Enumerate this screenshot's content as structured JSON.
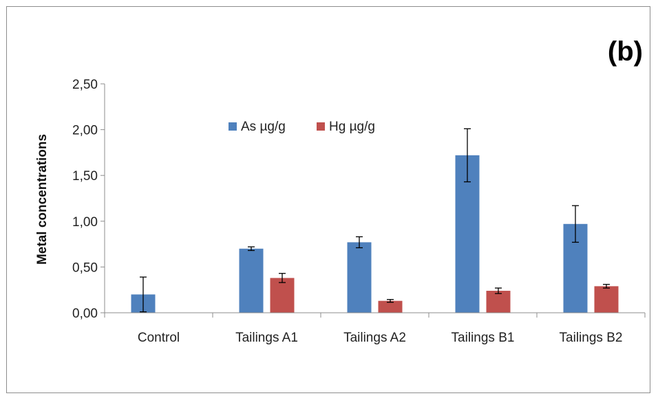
{
  "chart_data": {
    "type": "bar",
    "panel_label": "(b)",
    "ylabel": "Metal concentrations",
    "xlabel": "",
    "ylim": [
      0,
      2.5
    ],
    "yticks": [
      0,
      0.5,
      1.0,
      1.5,
      2.0,
      2.5
    ],
    "ytick_labels": [
      "0,00",
      "0,50",
      "1,00",
      "1,50",
      "2,00",
      "2,50"
    ],
    "categories": [
      "Control",
      "Tailings A1",
      "Tailings A2",
      "Tailings B1",
      "Tailings B2"
    ],
    "series": [
      {
        "name": "As µg/g",
        "color": "#4f81bd",
        "values": [
          0.2,
          0.7,
          0.77,
          1.72,
          0.97
        ],
        "errors": [
          0.19,
          0.02,
          0.06,
          0.29,
          0.2
        ]
      },
      {
        "name": "Hg µg/g",
        "color": "#c0504d",
        "values": [
          0.0,
          0.38,
          0.13,
          0.24,
          0.29
        ],
        "errors": [
          0.0,
          0.05,
          0.015,
          0.03,
          0.02
        ]
      }
    ],
    "legend": "top-center",
    "grid": false
  }
}
